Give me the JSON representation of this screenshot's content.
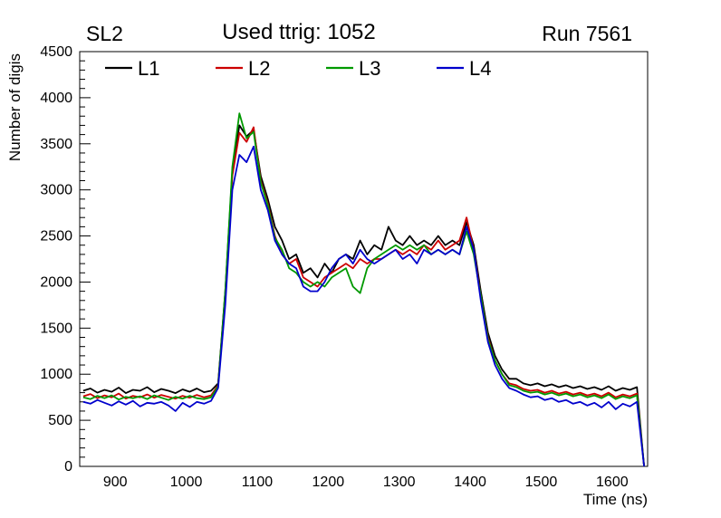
{
  "header": {
    "left": "SL2",
    "right": "Run 7561"
  },
  "chart_data": {
    "type": "line",
    "title": "Used ttrig: 1052",
    "xlabel": "Time (ns)",
    "ylabel": "Number of digis",
    "xlim": [
      850,
      1650
    ],
    "ylim": [
      0,
      4500
    ],
    "x_ticks": [
      900,
      1000,
      1100,
      1200,
      1300,
      1400,
      1500,
      1600
    ],
    "y_ticks": [
      0,
      500,
      1000,
      1500,
      2000,
      2500,
      3000,
      3500,
      4000,
      4500
    ],
    "x_minor_step": 20,
    "y_minor_step": 100,
    "x_major_step": 100,
    "y_major_step": 500,
    "grid": false,
    "legend_position": "top-inside",
    "x": [
      855,
      865,
      875,
      885,
      895,
      905,
      915,
      925,
      935,
      945,
      955,
      965,
      975,
      985,
      995,
      1005,
      1015,
      1025,
      1035,
      1045,
      1055,
      1065,
      1075,
      1085,
      1095,
      1105,
      1115,
      1125,
      1135,
      1145,
      1155,
      1165,
      1175,
      1185,
      1195,
      1205,
      1215,
      1225,
      1235,
      1245,
      1255,
      1265,
      1275,
      1285,
      1295,
      1305,
      1315,
      1325,
      1335,
      1345,
      1355,
      1365,
      1375,
      1385,
      1395,
      1405,
      1415,
      1425,
      1435,
      1445,
      1455,
      1465,
      1475,
      1485,
      1495,
      1505,
      1515,
      1525,
      1535,
      1545,
      1555,
      1565,
      1575,
      1585,
      1595,
      1605,
      1615,
      1625,
      1635,
      1645
    ],
    "series": [
      {
        "name": "L1",
        "color": "#000000",
        "values": [
          820,
          845,
          800,
          830,
          810,
          855,
          795,
          830,
          820,
          860,
          805,
          840,
          820,
          795,
          835,
          810,
          845,
          805,
          820,
          900,
          1900,
          3200,
          3700,
          3580,
          3650,
          3150,
          2900,
          2600,
          2450,
          2250,
          2300,
          2100,
          2150,
          2050,
          2200,
          2100,
          2250,
          2300,
          2250,
          2450,
          2300,
          2400,
          2350,
          2600,
          2450,
          2400,
          2500,
          2400,
          2450,
          2400,
          2500,
          2400,
          2450,
          2400,
          2650,
          2400,
          1900,
          1450,
          1200,
          1050,
          950,
          950,
          900,
          880,
          900,
          870,
          890,
          860,
          880,
          850,
          870,
          840,
          860,
          830,
          870,
          820,
          850,
          830,
          860,
          0
        ]
      },
      {
        "name": "L2",
        "color": "#cc0000",
        "values": [
          760,
          785,
          740,
          770,
          750,
          790,
          735,
          765,
          750,
          780,
          745,
          775,
          755,
          735,
          765,
          745,
          775,
          750,
          770,
          880,
          1850,
          3150,
          3620,
          3520,
          3680,
          3100,
          2850,
          2500,
          2300,
          2200,
          2250,
          2050,
          2000,
          1950,
          2050,
          2100,
          2150,
          2200,
          2150,
          2250,
          2200,
          2250,
          2250,
          2300,
          2350,
          2300,
          2350,
          2300,
          2400,
          2350,
          2450,
          2350,
          2400,
          2450,
          2700,
          2350,
          1850,
          1400,
          1150,
          1000,
          900,
          880,
          840,
          820,
          830,
          800,
          820,
          790,
          810,
          780,
          800,
          770,
          790,
          760,
          800,
          750,
          780,
          760,
          790,
          0
        ]
      },
      {
        "name": "L3",
        "color": "#009900",
        "values": [
          750,
          730,
          765,
          740,
          770,
          725,
          755,
          740,
          760,
          730,
          770,
          745,
          720,
          755,
          735,
          765,
          740,
          730,
          750,
          870,
          1900,
          3250,
          3830,
          3560,
          3630,
          3080,
          2830,
          2480,
          2350,
          2150,
          2100,
          2000,
          1950,
          2000,
          1950,
          2050,
          2100,
          2150,
          1950,
          1880,
          2150,
          2250,
          2300,
          2350,
          2400,
          2350,
          2400,
          2350,
          2400,
          2300,
          2350,
          2300,
          2350,
          2300,
          2550,
          2300,
          1850,
          1380,
          1150,
          1000,
          880,
          860,
          820,
          800,
          810,
          780,
          800,
          770,
          790,
          760,
          780,
          750,
          770,
          740,
          780,
          730,
          760,
          740,
          770,
          0
        ]
      },
      {
        "name": "L4",
        "color": "#0000cc",
        "values": [
          700,
          680,
          720,
          690,
          660,
          705,
          670,
          710,
          650,
          690,
          680,
          700,
          660,
          600,
          690,
          645,
          700,
          680,
          710,
          850,
          1750,
          3000,
          3380,
          3300,
          3470,
          3000,
          2780,
          2450,
          2300,
          2200,
          2150,
          1950,
          1900,
          1900,
          2000,
          2150,
          2250,
          2300,
          2200,
          2350,
          2250,
          2200,
          2250,
          2300,
          2350,
          2250,
          2300,
          2200,
          2350,
          2300,
          2350,
          2300,
          2350,
          2300,
          2600,
          2350,
          1800,
          1350,
          1100,
          950,
          850,
          820,
          780,
          750,
          760,
          720,
          740,
          700,
          720,
          680,
          700,
          660,
          690,
          640,
          700,
          620,
          680,
          650,
          700,
          0
        ]
      }
    ]
  }
}
